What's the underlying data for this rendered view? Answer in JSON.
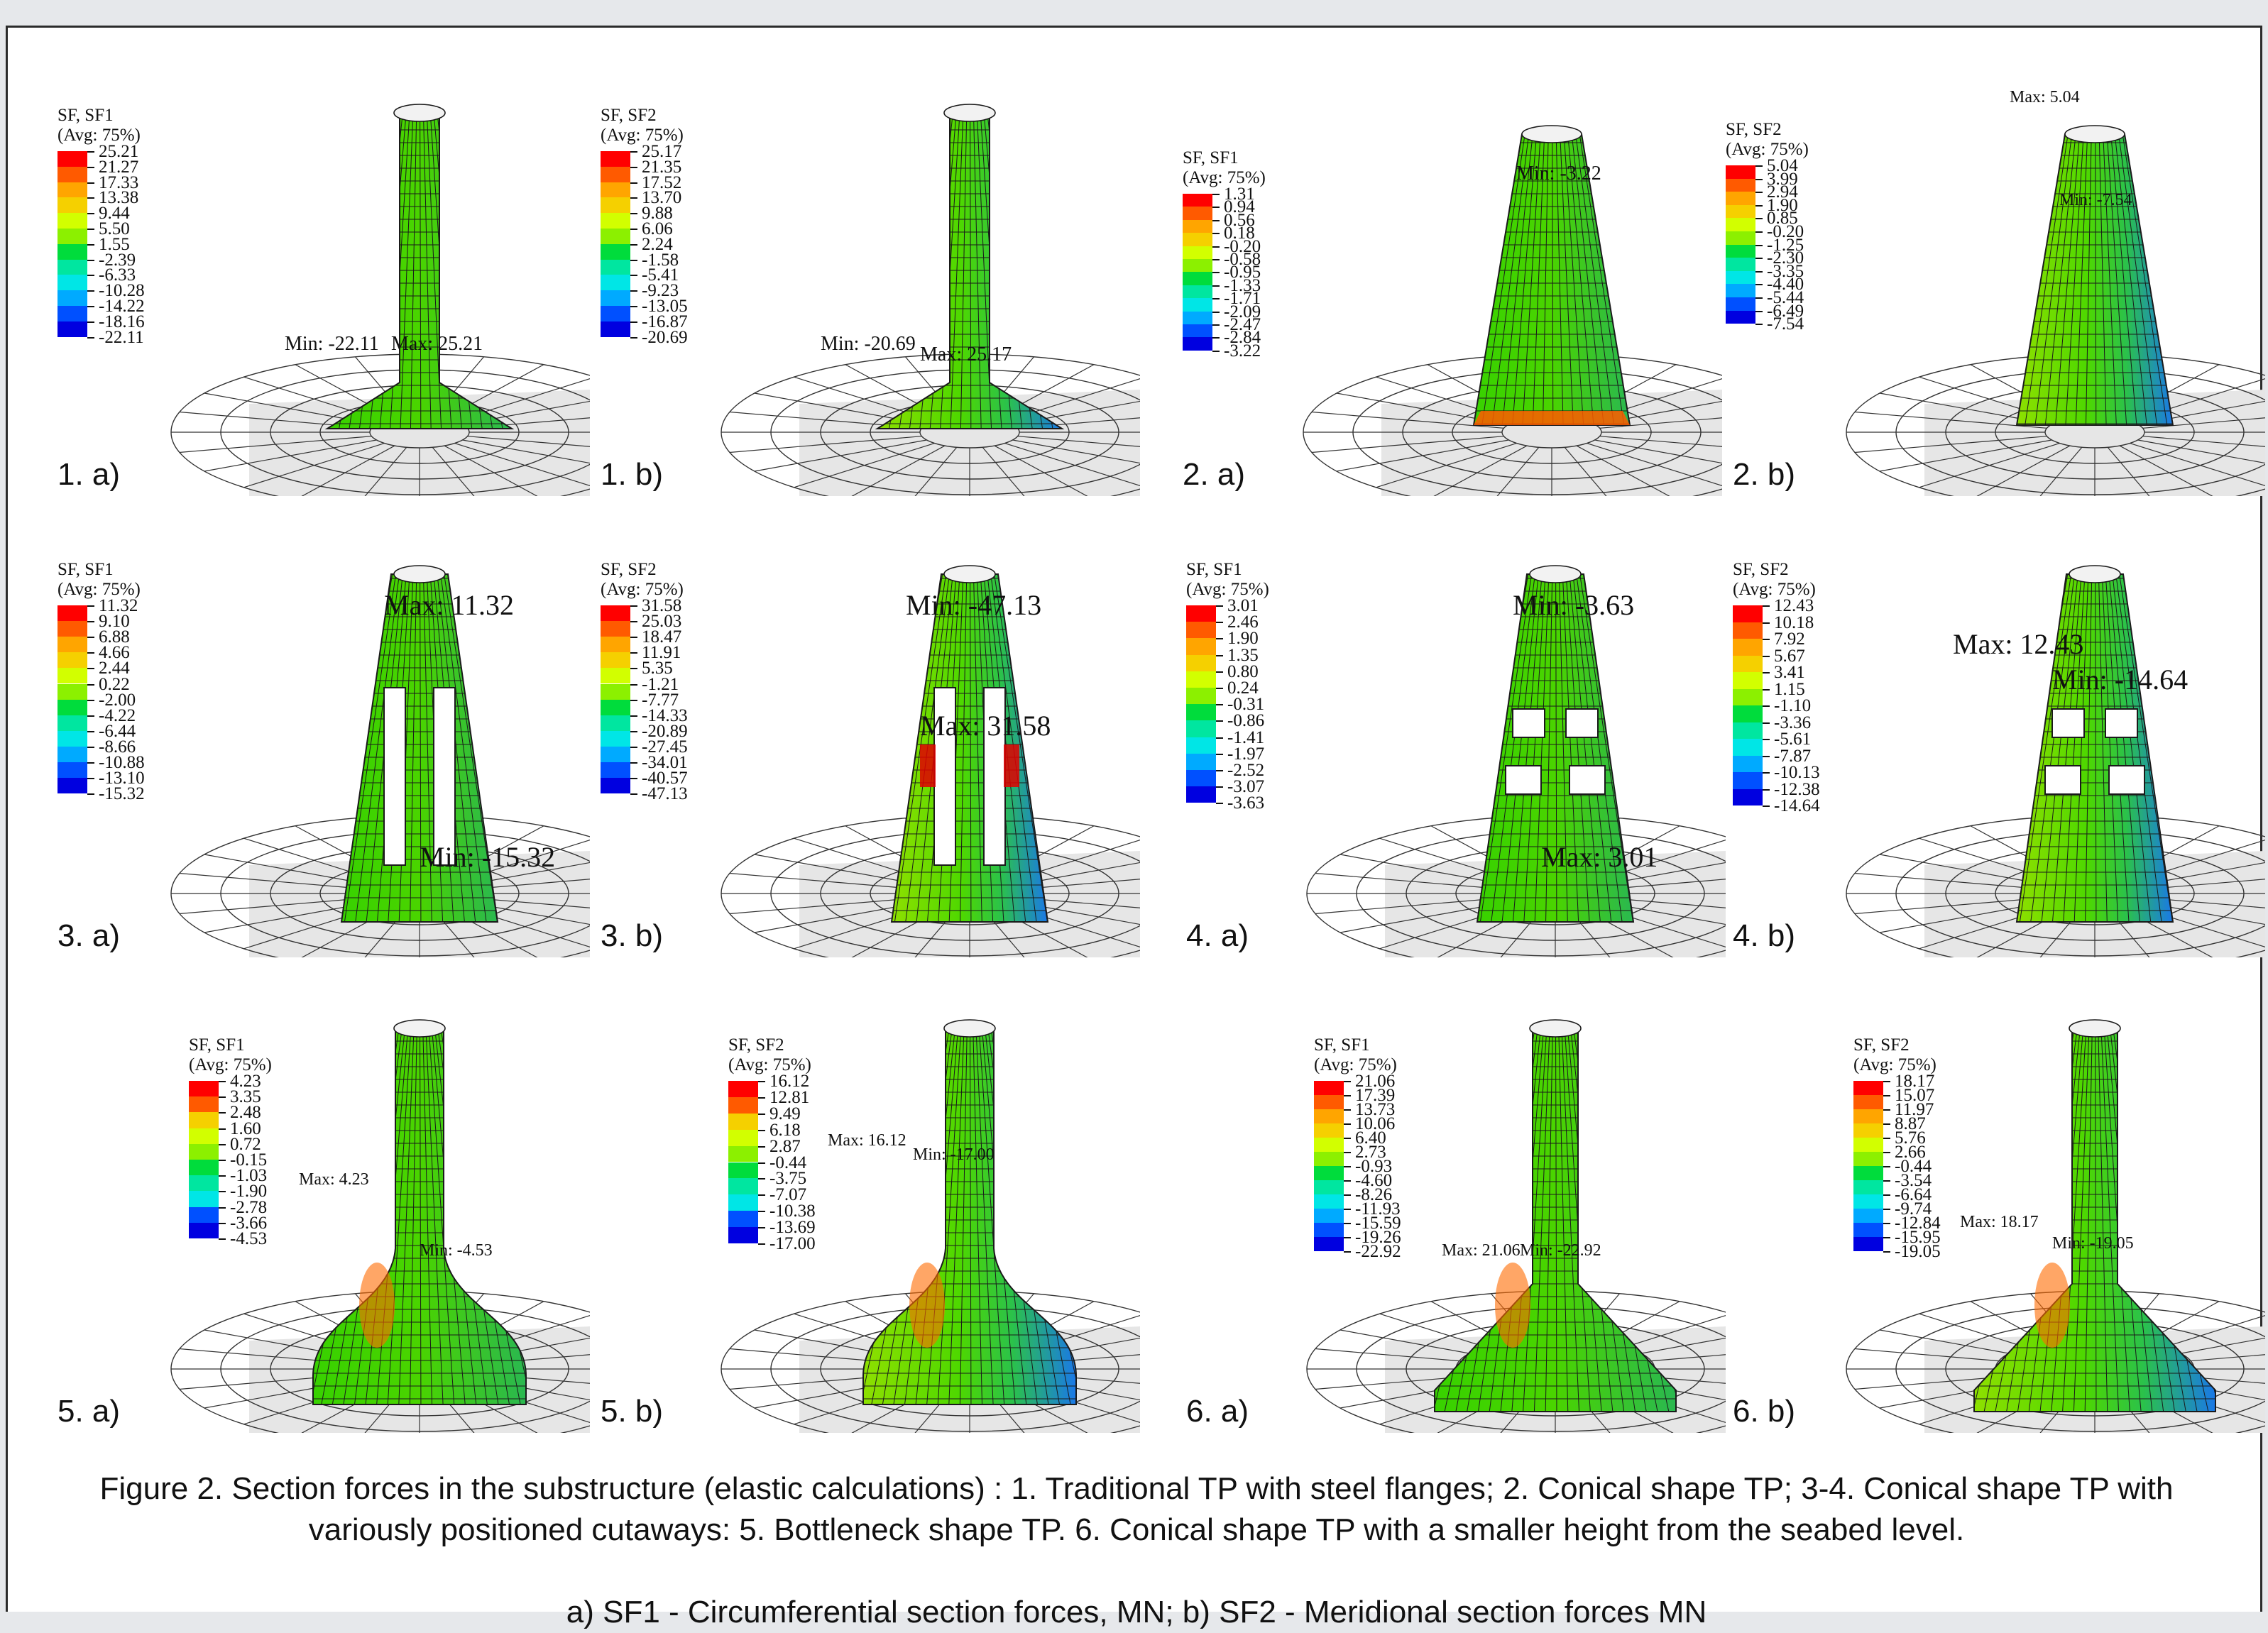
{
  "figure": {
    "caption": "Figure 2. Section forces in the substructure (elastic calculations) : 1. Traditional TP with steel flanges; 2. Conical shape TP; 3-4. Conical shape TP with variously positioned cutaways: 5. Bottleneck shape TP. 6. Conical shape TP with a smaller height from the seabed level.",
    "subcaption": "a) SF1 - Circumferential section forces, MN; b) SF2 - Meridional section forces MN"
  },
  "legend_colors": [
    "#ff0000",
    "#ff5a00",
    "#ffa500",
    "#f5d000",
    "#d2ff00",
    "#8cf000",
    "#3cdc00",
    "#00dc3c",
    "#00e6a0",
    "#00e6e6",
    "#00aaff",
    "#0050ff",
    "#0000e0"
  ],
  "panels": [
    {
      "id": "1a",
      "label": "1. a)",
      "title": "SF, SF1",
      "avg": "(Avg: 75%)",
      "values": [
        "25.21",
        "21.27",
        "17.33",
        "13.38",
        "9.44",
        "5.50",
        "1.55",
        "-2.39",
        "-6.33",
        "-10.28",
        "-14.22",
        "-18.16",
        "-22.11"
      ],
      "callouts": [
        "Min: -22.11",
        "Max: 25.21"
      ]
    },
    {
      "id": "1b",
      "label": "1. b)",
      "title": "SF, SF2",
      "avg": "(Avg: 75%)",
      "values": [
        "25.17",
        "21.35",
        "17.52",
        "13.70",
        "9.88",
        "6.06",
        "2.24",
        "-1.58",
        "-5.41",
        "-9.23",
        "-13.05",
        "-16.87",
        "-20.69"
      ],
      "callouts": [
        "Min: -20.69",
        "Max: 25.17"
      ]
    },
    {
      "id": "2a",
      "label": "2. a)",
      "title": "SF, SF1",
      "avg": "(Avg: 75%)",
      "values": [
        "1.31",
        "0.94",
        "0.56",
        "0.18",
        "-0.20",
        "-0.58",
        "-0.95",
        "-1.33",
        "-1.71",
        "-2.09",
        "-2.47",
        "-2.84",
        "-3.22"
      ],
      "callouts": [
        "Min: -3.22"
      ]
    },
    {
      "id": "2b",
      "label": "2. b)",
      "title": "SF, SF2",
      "avg": "(Avg: 75%)",
      "values": [
        "5.04",
        "3.99",
        "2.94",
        "1.90",
        "0.85",
        "-0.20",
        "-1.25",
        "-2.30",
        "-3.35",
        "-4.40",
        "-5.44",
        "-6.49",
        "-7.54"
      ],
      "callouts": [
        "Max: 5.04",
        "Min: -7.54"
      ]
    },
    {
      "id": "3a",
      "label": "3. a)",
      "title": "SF, SF1",
      "avg": "(Avg: 75%)",
      "values": [
        "11.32",
        "9.10",
        "6.88",
        "4.66",
        "2.44",
        "0.22",
        "-2.00",
        "-4.22",
        "-6.44",
        "-8.66",
        "-10.88",
        "-13.10",
        "-15.32"
      ],
      "callouts": [
        "Max: 11.32",
        "Min: -15.32"
      ]
    },
    {
      "id": "3b",
      "label": "3. b)",
      "title": "SF, SF2",
      "avg": "(Avg: 75%)",
      "values": [
        "31.58",
        "25.03",
        "18.47",
        "11.91",
        "5.35",
        "-1.21",
        "-7.77",
        "-14.33",
        "-20.89",
        "-27.45",
        "-34.01",
        "-40.57",
        "-47.13"
      ],
      "callouts": [
        "Min: -47.13",
        "Max: 31.58"
      ]
    },
    {
      "id": "4a",
      "label": "4. a)",
      "title": "SF, SF1",
      "avg": "(Avg: 75%)",
      "values": [
        "3.01",
        "2.46",
        "1.90",
        "1.35",
        "0.80",
        "0.24",
        "-0.31",
        "-0.86",
        "-1.41",
        "-1.97",
        "-2.52",
        "-3.07",
        "-3.63"
      ],
      "callouts": [
        "Min: -3.63",
        "Max: 3.01"
      ]
    },
    {
      "id": "4b",
      "label": "4. b)",
      "title": "SF, SF2",
      "avg": "(Avg: 75%)",
      "values": [
        "12.43",
        "10.18",
        "7.92",
        "5.67",
        "3.41",
        "1.15",
        "-1.10",
        "-3.36",
        "-5.61",
        "-7.87",
        "-10.13",
        "-12.38",
        "-14.64"
      ],
      "callouts": [
        "Max: 12.43",
        "Min: -14.64"
      ]
    },
    {
      "id": "5a",
      "label": "5. a)",
      "title": "SF, SF1",
      "avg": "(Avg: 75%)",
      "values": [
        "4.23",
        "3.35",
        "2.48",
        "1.60",
        "0.72",
        "-0.15",
        "-1.03",
        "-1.90",
        "-2.78",
        "-3.66",
        "-4.53"
      ],
      "callouts": [
        "Max: 4.23",
        "Min: -4.53"
      ]
    },
    {
      "id": "5b",
      "label": "5. b)",
      "title": "SF, SF2",
      "avg": "(Avg: 75%)",
      "values": [
        "16.12",
        "12.81",
        "9.49",
        "6.18",
        "2.87",
        "-0.44",
        "-3.75",
        "-7.07",
        "-10.38",
        "-13.69",
        "-17.00"
      ],
      "callouts": [
        "Max: 16.12",
        "Min: -17.00"
      ]
    },
    {
      "id": "6a",
      "label": "6. a)",
      "title": "SF, SF1",
      "avg": "(Avg: 75%)",
      "values": [
        "21.06",
        "17.39",
        "13.73",
        "10.06",
        "6.40",
        "2.73",
        "-0.93",
        "-4.60",
        "-8.26",
        "-11.93",
        "-15.59",
        "-19.26",
        "-22.92"
      ],
      "callouts": [
        "Max: 21.06",
        "Min: -22.92"
      ]
    },
    {
      "id": "6b",
      "label": "6. b)",
      "title": "SF, SF2",
      "avg": "(Avg: 75%)",
      "values": [
        "18.17",
        "15.07",
        "11.97",
        "8.87",
        "5.76",
        "2.66",
        "-0.44",
        "-3.54",
        "-6.64",
        "-9.74",
        "-12.84",
        "-15.95",
        "-19.05"
      ],
      "callouts": [
        "Max: 18.17",
        "Min: -19.05"
      ]
    }
  ]
}
